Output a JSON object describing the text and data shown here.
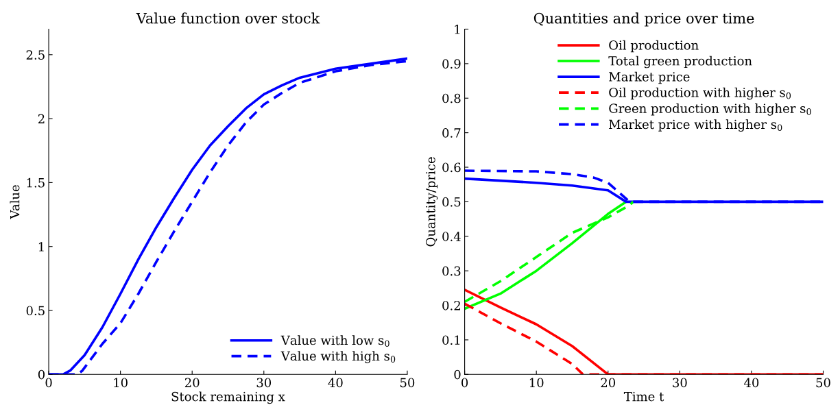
{
  "chart_data": [
    {
      "type": "line",
      "title": "Value function over stock",
      "xlabel": "Stock remaining x",
      "ylabel": "Value",
      "xlim": [
        0,
        50
      ],
      "ylim": [
        0,
        2.7
      ],
      "xticks": [
        0,
        10,
        20,
        30,
        40,
        50
      ],
      "yticks": [
        0,
        0.5,
        1,
        1.5,
        2,
        2.5
      ],
      "grid": false,
      "legend": "bottom right",
      "series": [
        {
          "name": "Value with low s$_{0}$",
          "color": "#0000ff",
          "line_style": "solid",
          "x": [
            0,
            2,
            3,
            5,
            7.5,
            10,
            12.5,
            15,
            17.5,
            20,
            22.5,
            25,
            27.5,
            30,
            32.5,
            35,
            40,
            45,
            50
          ],
          "values": [
            0,
            0,
            0.03,
            0.15,
            0.37,
            0.63,
            0.9,
            1.15,
            1.38,
            1.6,
            1.79,
            1.94,
            2.08,
            2.19,
            2.26,
            2.32,
            2.39,
            2.43,
            2.47
          ]
        },
        {
          "name": "Value with high s$_{0}$",
          "color": "#0000ff",
          "line_style": "dashed",
          "x": [
            0,
            4,
            4.7,
            7.5,
            10,
            12.5,
            15,
            17.5,
            20,
            22.5,
            25,
            27.5,
            30,
            32.5,
            35,
            40,
            45,
            50
          ],
          "values": [
            0,
            0,
            0.03,
            0.24,
            0.4,
            0.63,
            0.88,
            1.12,
            1.35,
            1.58,
            1.79,
            1.97,
            2.11,
            2.2,
            2.28,
            2.37,
            2.42,
            2.45
          ]
        }
      ]
    },
    {
      "type": "line",
      "title": "Quantities and price over time",
      "xlabel": "Time t",
      "ylabel": "Quantity/price",
      "xlim": [
        0,
        50
      ],
      "ylim": [
        0,
        1
      ],
      "xticks": [
        0,
        10,
        20,
        30,
        40,
        50
      ],
      "yticks": [
        0,
        0.1,
        0.2,
        0.3,
        0.4,
        0.5,
        0.6,
        0.7,
        0.8,
        0.9,
        1
      ],
      "grid": false,
      "legend": "top right",
      "series": [
        {
          "name": "Oil production",
          "color": "#ff0000",
          "line_style": "solid",
          "x": [
            0,
            5,
            10,
            15,
            20,
            50
          ],
          "values": [
            0.245,
            0.194,
            0.145,
            0.082,
            0,
            0
          ]
        },
        {
          "name": "Total green production",
          "color": "#00ff00",
          "line_style": "solid",
          "x": [
            0,
            5,
            10,
            15,
            20,
            22.5
          ],
          "values": [
            0.19,
            0.234,
            0.3,
            0.38,
            0.465,
            0.5
          ]
        },
        {
          "name": "Market price",
          "color": "#0000ff",
          "line_style": "solid",
          "x": [
            0,
            10,
            15,
            20,
            22.5,
            50
          ],
          "values": [
            0.567,
            0.555,
            0.547,
            0.533,
            0.5,
            0.5
          ]
        },
        {
          "name": "Oil production with higher s$_{0}$",
          "color": "#ff0000",
          "line_style": "dashed",
          "x": [
            0,
            5,
            10,
            15,
            16.5,
            50
          ],
          "values": [
            0.205,
            0.148,
            0.095,
            0.03,
            0,
            0
          ]
        },
        {
          "name": "Green production with higher s$_{0}$",
          "color": "#00ff00",
          "line_style": "dashed",
          "x": [
            0,
            5,
            10,
            15,
            20,
            23,
            23.5
          ],
          "values": [
            0.21,
            0.27,
            0.34,
            0.41,
            0.455,
            0.49,
            0.5
          ]
        },
        {
          "name": "Market price with higher s$_{0}$",
          "color": "#0000ff",
          "line_style": "dashed",
          "x": [
            0,
            10,
            15,
            18,
            20,
            23,
            50
          ],
          "values": [
            0.59,
            0.588,
            0.58,
            0.57,
            0.555,
            0.5,
            0.5
          ]
        }
      ]
    }
  ]
}
